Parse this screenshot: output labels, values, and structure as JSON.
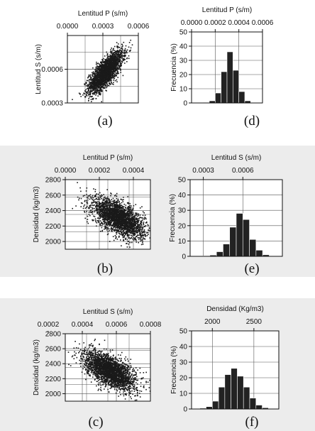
{
  "colors": {
    "panel_bg": "#ececec",
    "ink": "#111111",
    "grid": "#555555",
    "bar": "#222222"
  },
  "chart_data": [
    {
      "id": "a",
      "type": "scatter",
      "caption": "(a)",
      "xlabel": "Lentitud P (s/m)",
      "ylabel": "Lentitud S (s/m)",
      "xlim": [
        0,
        0.0006
      ],
      "ylim": [
        0.0003,
        0.0009
      ],
      "xticks": [
        "0.0000",
        "0.0003",
        "0.0006"
      ],
      "xtick_values": [
        0,
        0.0003,
        0.0006
      ],
      "yticks": [
        "0.0006",
        "0.0003"
      ],
      "ytick_values": [
        0.0006,
        0.0003
      ],
      "cloud": {
        "cx": 0.00032,
        "cy": 0.00058,
        "sx": 7e-05,
        "sy": 9e-05,
        "rho": 0.75,
        "n": 2600
      },
      "grid": true
    },
    {
      "id": "b",
      "type": "scatter",
      "caption": "(b)",
      "xlabel": "Lentitud P (s/m)",
      "ylabel": "Densidad  (kg/m3)",
      "xlim": [
        0,
        0.0005
      ],
      "ylim": [
        1900,
        2800
      ],
      "xticks": [
        "0.0000",
        "0.0002",
        "0.0004"
      ],
      "xtick_values": [
        0,
        0.0002,
        0.0004
      ],
      "yticks": [
        "2800",
        "2600",
        "2400",
        "2200",
        "2000"
      ],
      "ytick_values": [
        2800,
        2600,
        2400,
        2200,
        2000
      ],
      "cloud": {
        "cx": 0.00031,
        "cy": 2310,
        "sx": 7.5e-05,
        "sy": 125,
        "rho": -0.6,
        "n": 2600
      },
      "grid": true
    },
    {
      "id": "c",
      "type": "scatter",
      "caption": "(c)",
      "xlabel": "Lentitud S (s/m)",
      "ylabel": "Densidad  (kg/m3)",
      "xlim": [
        0.0003,
        0.0008
      ],
      "ylim": [
        1900,
        2800
      ],
      "xticks": [
        "0.0002",
        "0.0004",
        "0.0006",
        "0.0008"
      ],
      "xtick_values": [
        0.0002,
        0.0004,
        0.0006,
        0.0008
      ],
      "yticks": [
        "2800",
        "2600",
        "2400",
        "2200",
        "2000"
      ],
      "ytick_values": [
        2800,
        2600,
        2400,
        2200,
        2000
      ],
      "cloud": {
        "cx": 0.00056,
        "cy": 2310,
        "sx": 7.5e-05,
        "sy": 125,
        "rho": -0.6,
        "n": 2600
      },
      "grid": true
    },
    {
      "id": "d",
      "type": "bar",
      "caption": "(d)",
      "xlabel": "Lentitud P (s/m)",
      "ylabel": "Frecuencia (%)",
      "xlim": [
        0,
        0.0006
      ],
      "ylim": [
        0,
        50
      ],
      "xticks": [
        "0.0000",
        "0.0002",
        "0.0004",
        "0.0006"
      ],
      "xtick_values": [
        0,
        0.0002,
        0.0004,
        0.0006
      ],
      "yticks": [
        "50",
        "40",
        "30",
        "20",
        "10",
        "0"
      ],
      "ytick_values": [
        50,
        40,
        30,
        20,
        10,
        0
      ],
      "bin_width": 5e-05,
      "bins": [
        0.0001,
        0.00015,
        0.0002,
        0.00025,
        0.0003,
        0.00035,
        0.0004,
        0.00045
      ],
      "values": [
        0.3,
        1.5,
        7,
        22,
        36,
        23,
        8,
        1.5
      ],
      "grid": true
    },
    {
      "id": "e",
      "type": "bar",
      "caption": "(e)",
      "xlabel": "Lentitud S (s/m)",
      "ylabel": "Frecuencia (%)",
      "xlim": [
        0.0002,
        0.0009
      ],
      "ylim": [
        0,
        50
      ],
      "xticks": [
        "0.0003",
        "0.0006"
      ],
      "xtick_values": [
        0.0003,
        0.0006
      ],
      "yticks": [
        "50",
        "40",
        "30",
        "20",
        "10",
        "0"
      ],
      "ytick_values": [
        50,
        40,
        30,
        20,
        10,
        0
      ],
      "bin_width": 5e-05,
      "bins": [
        0.0003,
        0.00035,
        0.0004,
        0.00045,
        0.0005,
        0.00055,
        0.0006,
        0.00065,
        0.0007,
        0.00075
      ],
      "values": [
        0.3,
        0.8,
        3,
        8,
        19,
        28,
        24,
        11,
        4,
        1
      ],
      "grid": true
    },
    {
      "id": "f",
      "type": "bar",
      "caption": "(f)",
      "xlabel": "Densidad (Kg/m3)",
      "ylabel": "Frecuencia (%)",
      "xlim": [
        1750,
        2800
      ],
      "ylim": [
        0,
        50
      ],
      "xticks": [
        "2000",
        "2500"
      ],
      "xtick_values": [
        2000,
        2500
      ],
      "yticks": [
        "50",
        "40",
        "30",
        "20",
        "10",
        "0"
      ],
      "ytick_values": [
        50,
        40,
        30,
        20,
        10,
        0
      ],
      "bin_width": 75,
      "bins": [
        1850,
        1925,
        2000,
        2075,
        2150,
        2225,
        2300,
        2375,
        2450,
        2525,
        2600
      ],
      "values": [
        0.5,
        1.5,
        5,
        14,
        22,
        26,
        21,
        14,
        7,
        2.5,
        0.8
      ],
      "grid": true
    }
  ]
}
